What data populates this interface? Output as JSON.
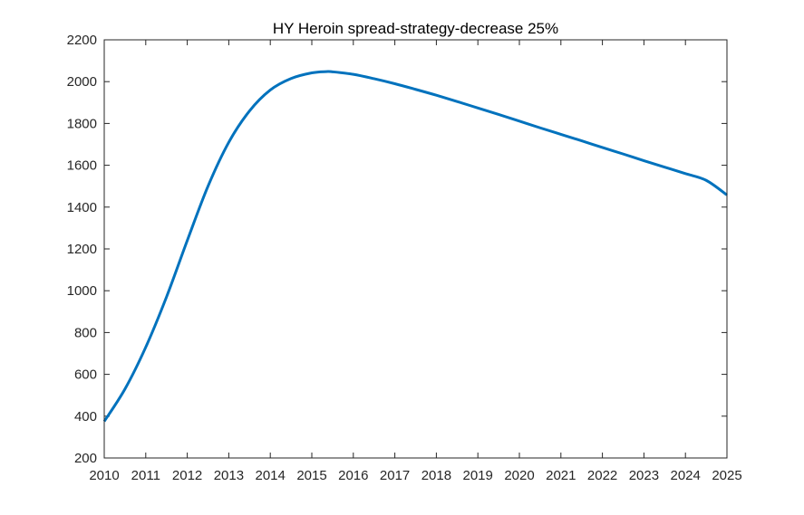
{
  "chart_data": {
    "type": "line",
    "title": "HY Heroin spread-strategy-decrease 25%",
    "xlabel": "",
    "ylabel": "",
    "xlim": [
      2010,
      2025
    ],
    "ylim": [
      200,
      2200
    ],
    "xticks": [
      "2010",
      "2011",
      "2012",
      "2013",
      "2014",
      "2015",
      "2016",
      "2017",
      "2018",
      "2019",
      "2020",
      "2021",
      "2022",
      "2023",
      "2024",
      "2025"
    ],
    "yticks": [
      "200",
      "400",
      "600",
      "800",
      "1000",
      "1200",
      "1400",
      "1600",
      "1800",
      "2000",
      "2200"
    ],
    "grid": false,
    "legend": "none",
    "series": [
      {
        "color": "#0072BD",
        "x": [
          2010,
          2010.5,
          2011,
          2011.5,
          2012,
          2012.5,
          2013,
          2013.5,
          2014,
          2014.5,
          2015,
          2015.35,
          2015.5,
          2016,
          2016.5,
          2017,
          2017.5,
          2018,
          2018.5,
          2019,
          2019.5,
          2020,
          2020.5,
          2021,
          2021.5,
          2022,
          2022.5,
          2023,
          2023.5,
          2024,
          2024.5,
          2025
        ],
        "y": [
          375,
          530,
          730,
          970,
          1240,
          1500,
          1710,
          1860,
          1960,
          2015,
          2042,
          2048,
          2047,
          2035,
          2014,
          1990,
          1963,
          1935,
          1905,
          1874,
          1843,
          1811,
          1779,
          1748,
          1717,
          1685,
          1654,
          1622,
          1591,
          1560,
          1528,
          1458
        ]
      }
    ]
  }
}
